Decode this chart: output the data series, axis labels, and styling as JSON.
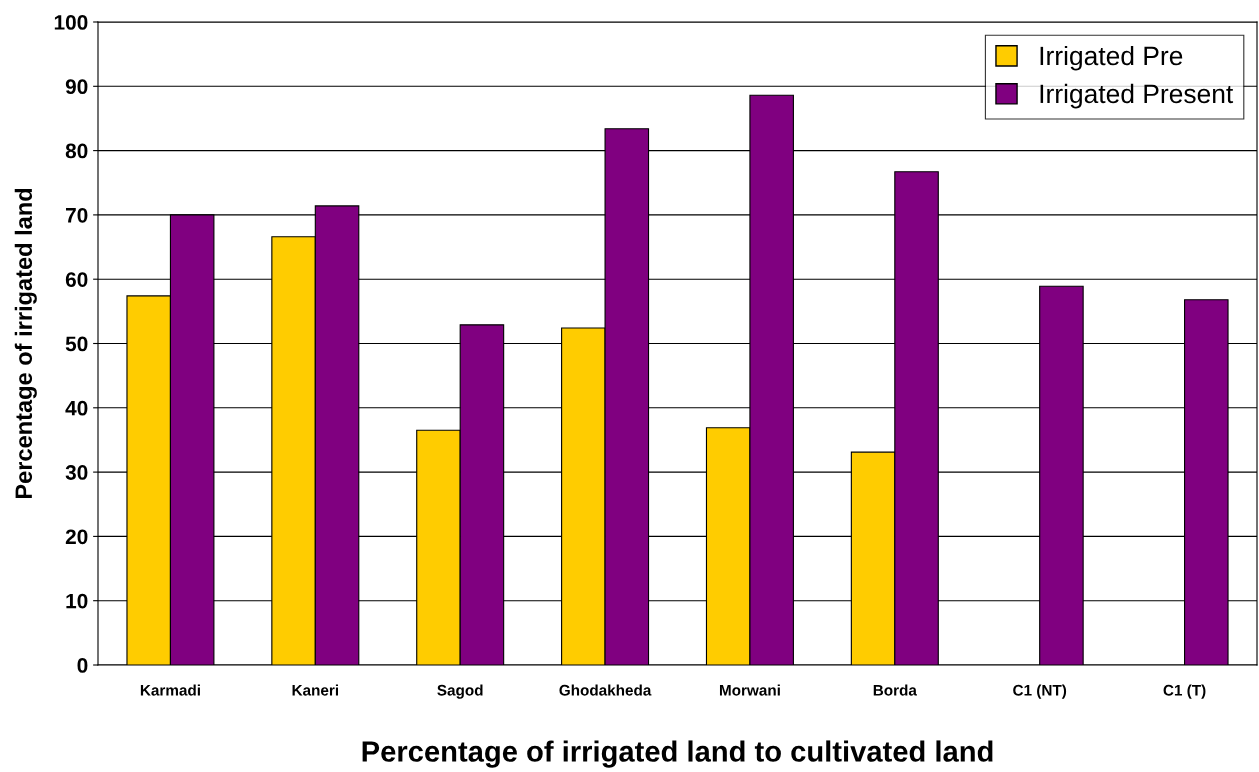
{
  "chart_data": {
    "type": "bar",
    "xlabel": "Percentage of irrigated land to cultivated land",
    "ylabel": "Percentage of irrigated land",
    "categories": [
      "Karmadi",
      "Kaneri",
      "Sagod",
      "Ghodakheda",
      "Morwani",
      "Borda",
      "C1 (NT)",
      "C1 (T)"
    ],
    "series": [
      {
        "name": "Irrigated Pre",
        "color": "#ffcc00",
        "values": [
          57.4,
          66.6,
          36.5,
          52.4,
          36.9,
          33.1,
          null,
          null
        ]
      },
      {
        "name": "Irrigated Present",
        "color": "#800080",
        "values": [
          70.0,
          71.4,
          52.9,
          83.4,
          88.6,
          76.7,
          58.9,
          56.8
        ]
      }
    ],
    "ylim": [
      0,
      100
    ],
    "yticks": [
      0,
      10,
      20,
      30,
      40,
      50,
      60,
      70,
      80,
      90,
      100
    ],
    "grid": "y",
    "legend": "top right"
  }
}
